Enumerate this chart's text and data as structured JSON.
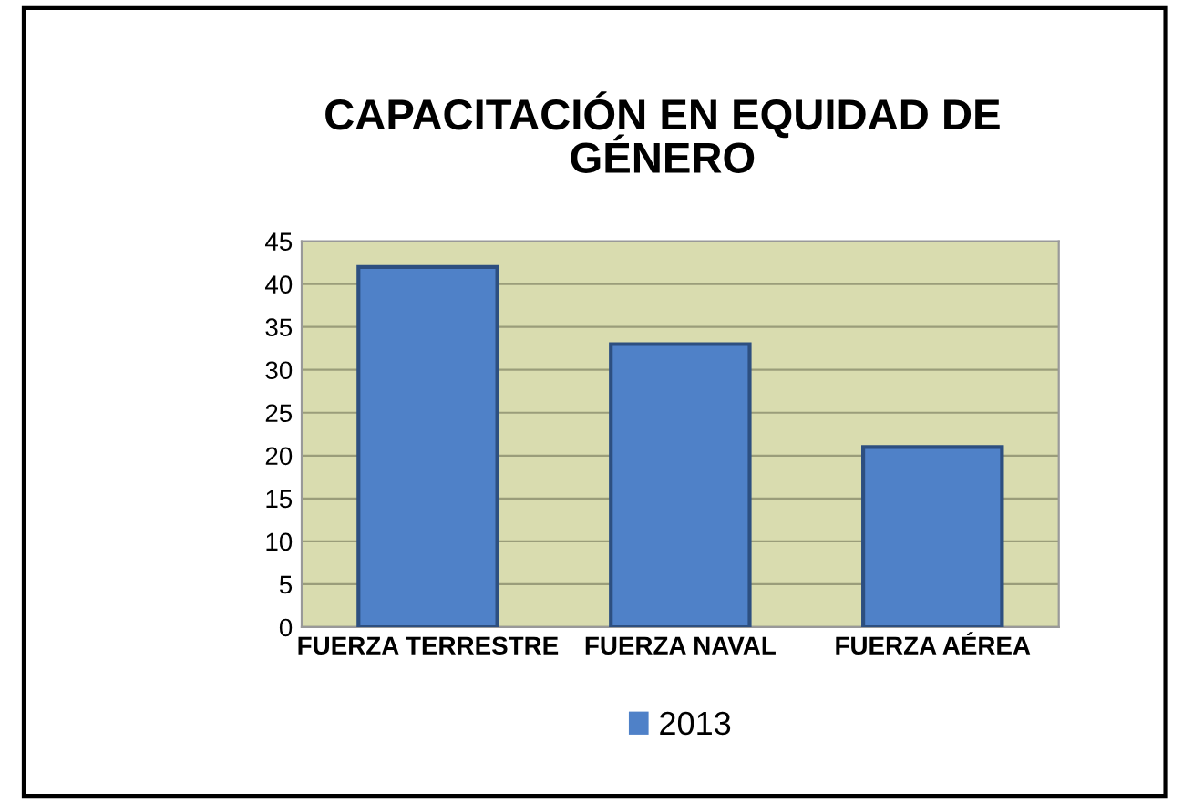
{
  "chart_data": {
    "type": "bar",
    "title": "CAPACITACIÓN EN EQUIDAD DE\nGÉNERO",
    "categories": [
      "FUERZA TERRESTRE",
      "FUERZA NAVAL",
      "FUERZA AÉREA"
    ],
    "series": [
      {
        "name": "2013",
        "color": "#4f81c8",
        "values": [
          42,
          33,
          21
        ]
      }
    ],
    "ylim": [
      0,
      45
    ],
    "yticks": [
      0,
      5,
      10,
      15,
      20,
      25,
      30,
      35,
      40,
      45
    ],
    "grid": "y",
    "legend": "bottom"
  }
}
